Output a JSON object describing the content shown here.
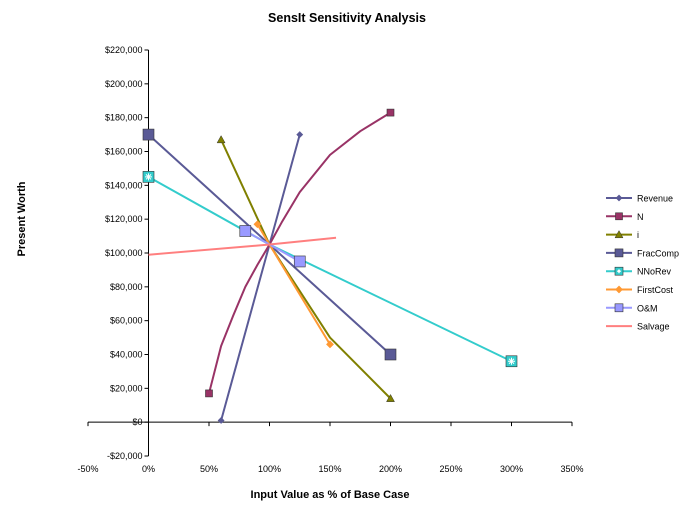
{
  "chart_data": {
    "type": "line",
    "title": "SensIt Sensitivity Analysis",
    "xlabel": "Input Value as % of Base Case",
    "ylabel": "Present Worth",
    "xlim": [
      -50,
      350
    ],
    "ylim": [
      -20000,
      220000
    ],
    "x_ticks": [
      -50,
      0,
      50,
      100,
      150,
      200,
      250,
      300,
      350
    ],
    "x_tick_labels": [
      "-50%",
      "0%",
      "50%",
      "100%",
      "150%",
      "200%",
      "250%",
      "300%",
      "350%"
    ],
    "y_ticks": [
      -20000,
      0,
      20000,
      40000,
      60000,
      80000,
      100000,
      120000,
      140000,
      160000,
      180000,
      200000,
      220000
    ],
    "y_tick_labels": [
      "-$20,000",
      "$0",
      "$20,000",
      "$40,000",
      "$60,000",
      "$80,000",
      "$100,000",
      "$120,000",
      "$140,000",
      "$160,000",
      "$180,000",
      "$200,000",
      "$220,000"
    ],
    "grid": false,
    "legend_position": "right",
    "series": [
      {
        "name": "Revenue",
        "color": "#5a5a96",
        "marker": "diamond",
        "marker_size": 6,
        "x": [
          60,
          100,
          125
        ],
        "y": [
          1000,
          105000,
          170000
        ],
        "markers_at": [
          0,
          2
        ]
      },
      {
        "name": "N",
        "color": "#993366",
        "marker": "square",
        "marker_size": 7,
        "x": [
          50,
          60,
          70,
          80,
          90,
          100,
          110,
          125,
          150,
          175,
          200
        ],
        "y": [
          17000,
          45000,
          63000,
          80000,
          93000,
          105000,
          118000,
          136000,
          158000,
          172000,
          183000
        ],
        "markers_at": [
          0,
          10
        ]
      },
      {
        "name": "i",
        "color": "#808000",
        "marker": "triangle",
        "marker_size": 8,
        "x": [
          60,
          100,
          150,
          200
        ],
        "y": [
          167000,
          105000,
          50000,
          14000
        ],
        "markers_at": [
          0,
          3
        ]
      },
      {
        "name": "FracComp",
        "color": "#5a5a96",
        "marker": "square",
        "marker_size": 11,
        "x": [
          0,
          100,
          200
        ],
        "y": [
          170000,
          105000,
          40000
        ],
        "markers_at": [
          0,
          2
        ]
      },
      {
        "name": "NNoRev",
        "color": "#33cccc",
        "marker": "asterisk-square",
        "marker_size": 11,
        "x": [
          0,
          100,
          300
        ],
        "y": [
          145000,
          105000,
          36000
        ],
        "markers_at": [
          0,
          2
        ]
      },
      {
        "name": "FirstCost",
        "color": "#ff9933",
        "marker": "diamond",
        "marker_size": 7,
        "x": [
          90,
          100,
          150
        ],
        "y": [
          117000,
          105000,
          46000
        ],
        "markers_at": [
          0,
          2
        ]
      },
      {
        "name": "O&M",
        "color": "#9999ff",
        "marker": "square",
        "marker_size": 11,
        "x": [
          80,
          100,
          125
        ],
        "y": [
          113000,
          105000,
          95000
        ],
        "markers_at": [
          0,
          2
        ]
      },
      {
        "name": "Salvage",
        "color": "#ff7f7f",
        "marker": "none",
        "marker_size": 0,
        "x": [
          0,
          100,
          155
        ],
        "y": [
          99000,
          105000,
          109000
        ],
        "markers_at": []
      }
    ]
  }
}
